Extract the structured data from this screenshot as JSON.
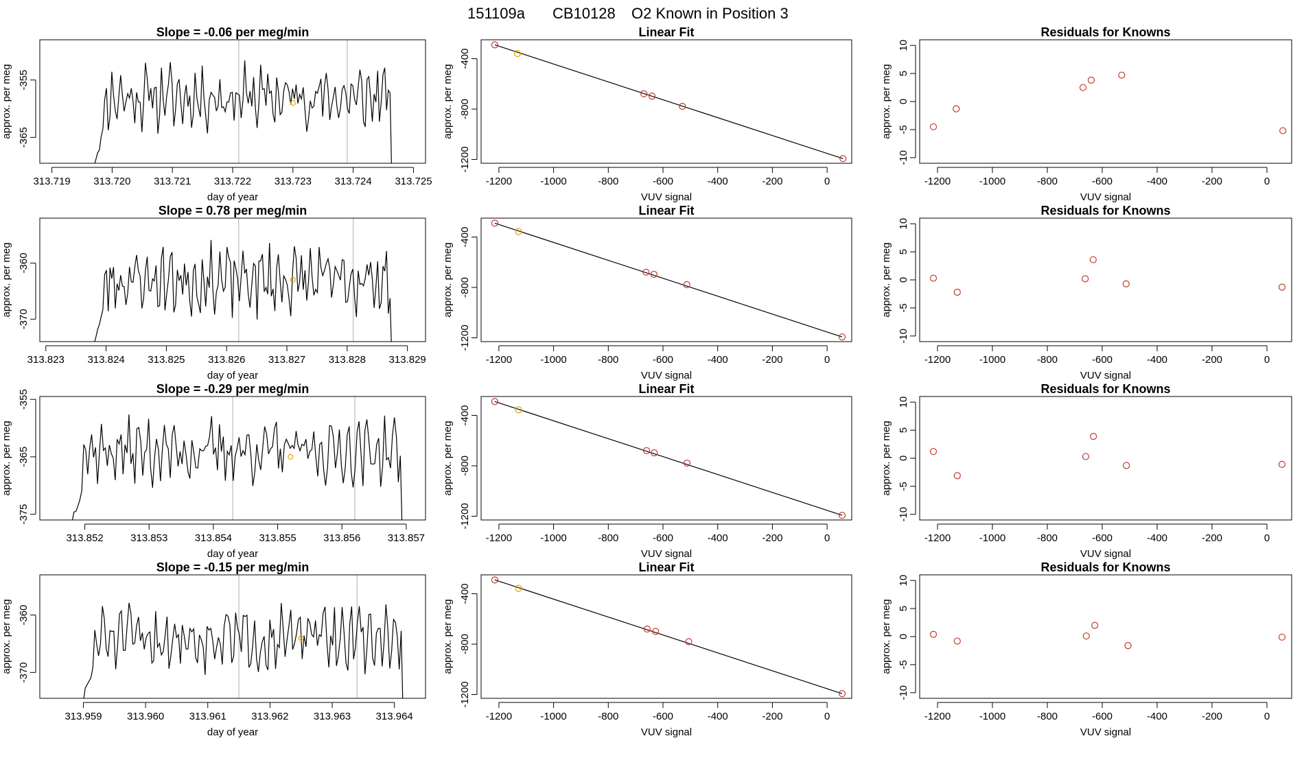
{
  "page_title": {
    "run_id": "151109a",
    "cylinder": "CB10128",
    "description": "O2 Known in Position  3"
  },
  "colors": {
    "line": "#000000",
    "grid_line": "#c8c8c8",
    "highlight_point": "#e69f00",
    "known_point": "#c0392b",
    "fit_line": "#000000"
  },
  "chart_data": [
    {
      "row": 1,
      "panel": "trace",
      "type": "line",
      "title": "Slope =  -0.06  per meg/min",
      "xlabel": "day of year",
      "ylabel": "approx. per meg",
      "xlim": [
        313.7188,
        313.7252
      ],
      "ylim": [
        -369.5,
        -348
      ],
      "xticks": [
        "313.719",
        "313.720",
        "313.721",
        "313.722",
        "313.723",
        "313.724",
        "313.725"
      ],
      "xtick_values": [
        313.719,
        313.72,
        313.721,
        313.722,
        313.723,
        313.724,
        313.725
      ],
      "yticks": [
        "-365",
        "-355"
      ],
      "ytick_values": [
        -365,
        -355
      ],
      "vlines": [
        313.7221,
        313.7239
      ],
      "segment": [
        313.7197,
        313.7247
      ],
      "seed": 11,
      "base": -358,
      "amp": 4.0,
      "highlight": {
        "x": 313.723,
        "y": -359
      }
    },
    {
      "row": 1,
      "panel": "fit",
      "type": "scatter",
      "title": "Linear Fit",
      "xlabel": "VUV signal",
      "ylabel": "approx. per meg",
      "xlim": [
        -1265,
        90
      ],
      "ylim": [
        -1230,
        -250
      ],
      "xticks": [
        "-1200",
        "-1000",
        "-800",
        "-600",
        "-400",
        "-200",
        "0"
      ],
      "xtick_values": [
        -1200,
        -1000,
        -800,
        -600,
        -400,
        -200,
        0
      ],
      "yticks": [
        "-1200",
        "-800",
        "-400"
      ],
      "ytick_values": [
        -1200,
        -800,
        -400
      ],
      "x": [
        -1215,
        -1132,
        -670,
        -640,
        -529,
        58
      ],
      "y": [
        -290,
        -359,
        -678,
        -697,
        -778,
        -1193
      ],
      "highlight_index": 1,
      "fit": {
        "x": [
          -1215,
          58
        ],
        "y": [
          -290,
          -1193
        ]
      }
    },
    {
      "row": 1,
      "panel": "residual",
      "type": "scatter",
      "title": "Residuals for Knowns",
      "xlabel": "VUV signal",
      "ylabel": "approx. per meg",
      "xlim": [
        -1265,
        90
      ],
      "ylim": [
        -11,
        11
      ],
      "xticks": [
        "-1200",
        "-1000",
        "-800",
        "-600",
        "-400",
        "-200",
        "0"
      ],
      "xtick_values": [
        -1200,
        -1000,
        -800,
        -600,
        -400,
        -200,
        0
      ],
      "yticks": [
        "-10",
        "-5",
        "0",
        "5",
        "10"
      ],
      "ytick_values": [
        -10,
        -5,
        0,
        5,
        10
      ],
      "x": [
        -1215,
        -1132,
        -670,
        -640,
        -529,
        58
      ],
      "y": [
        -4.5,
        -1.3,
        2.5,
        3.8,
        4.7,
        -5.2
      ]
    },
    {
      "row": 2,
      "panel": "trace",
      "type": "line",
      "title": "Slope =  0.78  per meg/min",
      "xlabel": "day of year",
      "ylabel": "approx. per meg",
      "xlim": [
        313.8229,
        313.8293
      ],
      "ylim": [
        -374,
        -352
      ],
      "xticks": [
        "313.823",
        "313.824",
        "313.825",
        "313.826",
        "313.827",
        "313.828",
        "313.829"
      ],
      "xtick_values": [
        313.823,
        313.824,
        313.825,
        313.826,
        313.827,
        313.828,
        313.829
      ],
      "yticks": [
        "-370",
        "-360"
      ],
      "ytick_values": [
        -370,
        -360
      ],
      "vlines": [
        313.8262,
        313.8281
      ],
      "segment": [
        313.8238,
        313.8288
      ],
      "seed": 23,
      "base": -363,
      "amp": 4.5,
      "highlight": {
        "x": 313.8271,
        "y": -363
      }
    },
    {
      "row": 2,
      "panel": "fit",
      "type": "scatter",
      "title": "Linear Fit",
      "xlabel": "VUV signal",
      "ylabel": "approx. per meg",
      "xlim": [
        -1265,
        90
      ],
      "ylim": [
        -1230,
        -250
      ],
      "xticks": [
        "-1200",
        "-1000",
        "-800",
        "-600",
        "-400",
        "-200",
        "0"
      ],
      "xtick_values": [
        -1200,
        -1000,
        -800,
        -600,
        -400,
        -200,
        0
      ],
      "yticks": [
        "-1200",
        "-800",
        "-400"
      ],
      "ytick_values": [
        -1200,
        -800,
        -400
      ],
      "x": [
        -1215,
        -1128,
        -662,
        -633,
        -513,
        55
      ],
      "y": [
        -290,
        -357,
        -679,
        -696,
        -778,
        -1193
      ],
      "highlight_index": 1,
      "fit": {
        "x": [
          -1215,
          55
        ],
        "y": [
          -290,
          -1193
        ]
      }
    },
    {
      "row": 2,
      "panel": "residual",
      "type": "scatter",
      "title": "Residuals for Knowns",
      "xlabel": "VUV signal",
      "ylabel": "approx. per meg",
      "xlim": [
        -1265,
        90
      ],
      "ylim": [
        -11,
        11
      ],
      "xticks": [
        "-1200",
        "-1000",
        "-800",
        "-600",
        "-400",
        "-200",
        "0"
      ],
      "xtick_values": [
        -1200,
        -1000,
        -800,
        -600,
        -400,
        -200,
        0
      ],
      "yticks": [
        "-10",
        "-5",
        "0",
        "5",
        "10"
      ],
      "ytick_values": [
        -10,
        -5,
        0,
        5,
        10
      ],
      "x": [
        -1215,
        -1128,
        -662,
        -633,
        -513,
        55
      ],
      "y": [
        0.3,
        -2.2,
        0.2,
        3.6,
        -0.7,
        -1.3
      ]
    },
    {
      "row": 3,
      "panel": "trace",
      "type": "line",
      "title": "Slope =  -0.29  per meg/min",
      "xlabel": "day of year",
      "ylabel": "approx. per meg",
      "xlim": [
        313.8513,
        313.8573
      ],
      "ylim": [
        -376,
        -354.5
      ],
      "xticks": [
        "313.852",
        "313.853",
        "313.854",
        "313.855",
        "313.856",
        "313.857"
      ],
      "xtick_values": [
        313.852,
        313.853,
        313.854,
        313.855,
        313.856,
        313.857
      ],
      "yticks": [
        "-375",
        "-365",
        "-355"
      ],
      "ytick_values": [
        -375,
        -365,
        -355
      ],
      "vlines": [
        313.8543,
        313.8562
      ],
      "segment": [
        313.8518,
        313.857
      ],
      "seed": 37,
      "base": -364,
      "amp": 4.0,
      "highlight": {
        "x": 313.8552,
        "y": -365
      }
    },
    {
      "row": 3,
      "panel": "fit",
      "type": "scatter",
      "title": "Linear Fit",
      "xlabel": "VUV signal",
      "ylabel": "approx. per meg",
      "xlim": [
        -1265,
        90
      ],
      "ylim": [
        -1230,
        -250
      ],
      "xticks": [
        "-1200",
        "-1000",
        "-800",
        "-600",
        "-400",
        "-200",
        "0"
      ],
      "xtick_values": [
        -1200,
        -1000,
        -800,
        -600,
        -400,
        -200,
        0
      ],
      "yticks": [
        "-1200",
        "-800",
        "-400"
      ],
      "ytick_values": [
        -1200,
        -800,
        -400
      ],
      "x": [
        -1215,
        -1128,
        -660,
        -632,
        -512,
        55
      ],
      "y": [
        -290,
        -356,
        -680,
        -697,
        -779,
        -1193
      ],
      "highlight_index": 1,
      "fit": {
        "x": [
          -1215,
          55
        ],
        "y": [
          -290,
          -1193
        ]
      }
    },
    {
      "row": 3,
      "panel": "residual",
      "type": "scatter",
      "title": "Residuals for Knowns",
      "xlabel": "VUV signal",
      "ylabel": "approx. per meg",
      "xlim": [
        -1265,
        90
      ],
      "ylim": [
        -11,
        11
      ],
      "xticks": [
        "-1200",
        "-1000",
        "-800",
        "-600",
        "-400",
        "-200",
        "0"
      ],
      "xtick_values": [
        -1200,
        -1000,
        -800,
        -600,
        -400,
        -200,
        0
      ],
      "yticks": [
        "-10",
        "-5",
        "0",
        "5",
        "10"
      ],
      "ytick_values": [
        -10,
        -5,
        0,
        5,
        10
      ],
      "x": [
        -1215,
        -1128,
        -660,
        -632,
        -512,
        55
      ],
      "y": [
        1.2,
        -3.1,
        0.3,
        3.9,
        -1.3,
        -1.1
      ]
    },
    {
      "row": 4,
      "panel": "trace",
      "type": "line",
      "title": "Slope =  -0.15  per meg/min",
      "xlabel": "day of year",
      "ylabel": "approx. per meg",
      "xlim": [
        313.9583,
        313.9645
      ],
      "ylim": [
        -374.5,
        -353
      ],
      "xticks": [
        "313.959",
        "313.960",
        "313.961",
        "313.962",
        "313.963",
        "313.964"
      ],
      "xtick_values": [
        313.959,
        313.96,
        313.961,
        313.962,
        313.963,
        313.964
      ],
      "yticks": [
        "-370",
        "-360"
      ],
      "ytick_values": [
        -370,
        -360
      ],
      "vlines": [
        313.9615,
        313.9634
      ],
      "segment": [
        313.959,
        313.9642
      ],
      "seed": 51,
      "base": -364,
      "amp": 4.0,
      "highlight": {
        "x": 313.9625,
        "y": -364
      }
    },
    {
      "row": 4,
      "panel": "fit",
      "type": "scatter",
      "title": "Linear Fit",
      "xlabel": "VUV signal",
      "ylabel": "approx. per meg",
      "xlim": [
        -1265,
        90
      ],
      "ylim": [
        -1230,
        -250
      ],
      "xticks": [
        "-1200",
        "-1000",
        "-800",
        "-600",
        "-400",
        "-200",
        "0"
      ],
      "xtick_values": [
        -1200,
        -1000,
        -800,
        -600,
        -400,
        -200,
        0
      ],
      "yticks": [
        "-1200",
        "-800",
        "-400"
      ],
      "ytick_values": [
        -1200,
        -800,
        -400
      ],
      "x": [
        -1215,
        -1128,
        -658,
        -627,
        -506,
        55
      ],
      "y": [
        -290,
        -357,
        -680,
        -699,
        -781,
        -1193
      ],
      "highlight_index": 1,
      "fit": {
        "x": [
          -1215,
          55
        ],
        "y": [
          -290,
          -1193
        ]
      }
    },
    {
      "row": 4,
      "panel": "residual",
      "type": "scatter",
      "title": "Residuals for Knowns",
      "xlabel": "VUV signal",
      "ylabel": "approx. per meg",
      "xlim": [
        -1265,
        90
      ],
      "ylim": [
        -11,
        11
      ],
      "xticks": [
        "-1200",
        "-1000",
        "-800",
        "-600",
        "-400",
        "-200",
        "0"
      ],
      "xtick_values": [
        -1200,
        -1000,
        -800,
        -600,
        -400,
        -200,
        0
      ],
      "yticks": [
        "-10",
        "-5",
        "0",
        "5",
        "10"
      ],
      "ytick_values": [
        -10,
        -5,
        0,
        5,
        10
      ],
      "x": [
        -1215,
        -1128,
        -658,
        -627,
        -506,
        55
      ],
      "y": [
        0.4,
        -0.8,
        0.1,
        2.0,
        -1.6,
        -0.1
      ]
    }
  ]
}
